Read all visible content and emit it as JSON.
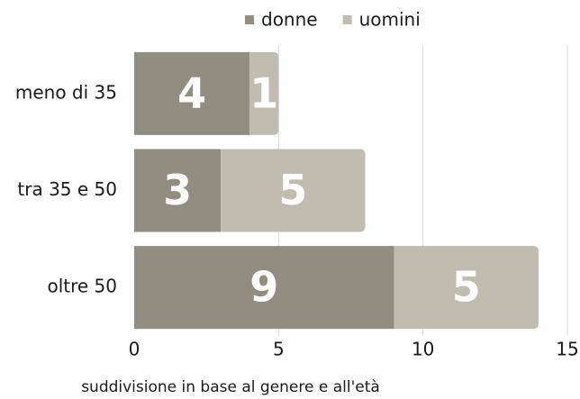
{
  "chart_data": {
    "type": "stacked_barh",
    "categories": [
      "meno di 35",
      "tra 35 e 50",
      "oltre 50"
    ],
    "series": [
      {
        "name": "donne",
        "color": "#918d80",
        "values": [
          4,
          3,
          9
        ]
      },
      {
        "name": "uomini",
        "color": "#c0bcb0",
        "values": [
          1,
          5,
          5
        ]
      }
    ],
    "xlabel": "suddivisione in base al genere e all'età",
    "xlim": [
      0,
      15
    ],
    "xticks": [
      0,
      5,
      10,
      15
    ],
    "grid": true,
    "legend": "top"
  }
}
